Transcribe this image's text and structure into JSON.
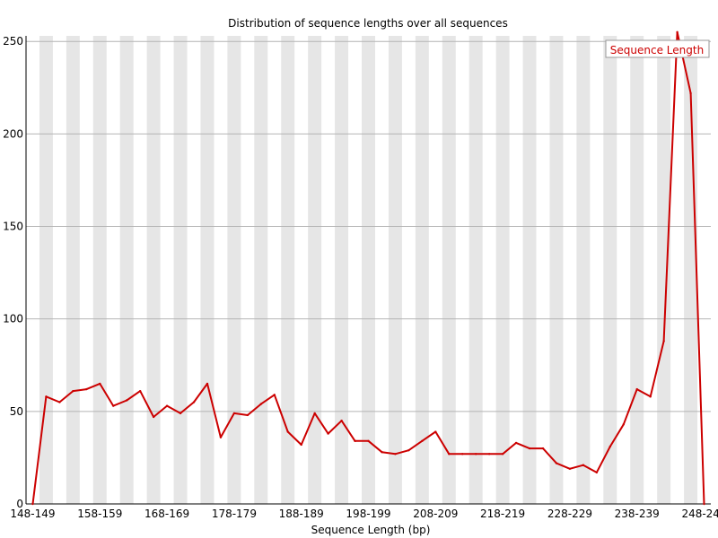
{
  "chart_data": {
    "type": "line",
    "title": "Distribution of sequence lengths over all sequences",
    "xlabel": "Sequence Length (bp)",
    "ylabel": "",
    "ylim": [
      0,
      253
    ],
    "y_ticks": [
      0,
      50,
      100,
      150,
      200,
      250
    ],
    "categories": [
      "148-149",
      "150-151",
      "152-153",
      "154-155",
      "156-157",
      "158-159",
      "160-161",
      "162-163",
      "164-165",
      "166-167",
      "168-169",
      "170-171",
      "172-173",
      "174-175",
      "176-177",
      "178-179",
      "180-181",
      "182-183",
      "184-185",
      "186-187",
      "188-189",
      "190-191",
      "192-193",
      "194-195",
      "196-197",
      "198-199",
      "200-201",
      "202-203",
      "204-205",
      "206-207",
      "208-209",
      "210-211",
      "212-213",
      "214-215",
      "216-217",
      "218-219",
      "220-221",
      "222-223",
      "224-225",
      "226-227",
      "228-229",
      "230-231",
      "232-233",
      "234-235",
      "236-237",
      "238-239",
      "240-241",
      "242-243",
      "244-245",
      "246-247",
      "248-248"
    ],
    "x_tick_labels": [
      "148-149",
      "158-159",
      "168-169",
      "178-179",
      "188-189",
      "198-199",
      "208-209",
      "218-219",
      "228-229",
      "238-239",
      "248-248"
    ],
    "x_tick_indices": [
      0,
      5,
      10,
      15,
      20,
      25,
      30,
      35,
      40,
      45,
      50
    ],
    "grid": true,
    "legend_position": "top-right",
    "series": [
      {
        "name": "Sequence Length",
        "color": "#cc0000",
        "values": [
          0,
          58,
          55,
          61,
          62,
          65,
          53,
          56,
          61,
          47,
          53,
          49,
          55,
          65,
          36,
          49,
          48,
          54,
          59,
          39,
          32,
          49,
          38,
          45,
          34,
          34,
          28,
          27,
          29,
          34,
          39,
          27,
          27,
          27,
          27,
          27,
          33,
          30,
          30,
          22,
          19,
          21,
          17,
          31,
          43,
          62,
          58,
          88,
          255,
          222,
          0
        ]
      }
    ]
  }
}
